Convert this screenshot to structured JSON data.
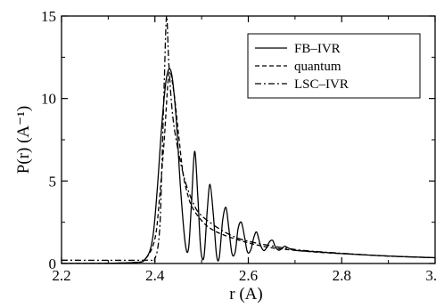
{
  "chart_data": {
    "type": "line",
    "xlabel": "r (A)",
    "ylabel": "P(r) (A⁻¹)",
    "xlim": [
      2.2,
      3.0
    ],
    "ylim": [
      0,
      15
    ],
    "xticks": [
      2.2,
      2.4,
      2.6,
      2.8,
      3.0
    ],
    "xtick_labels": [
      "2.2",
      "2.4",
      "2.6",
      "2.8",
      "3.0"
    ],
    "yticks": [
      0,
      5,
      10,
      15
    ],
    "ytick_labels": [
      "0",
      "5",
      "10",
      "15"
    ],
    "grid": false,
    "legend_position": "top-right",
    "series": [
      {
        "name": "FB–IVR",
        "style": "solid",
        "x": [
          2.2,
          2.35,
          2.38,
          2.395,
          2.405,
          2.415,
          2.425,
          2.435,
          2.445,
          2.455,
          2.465,
          2.472,
          2.478,
          2.485,
          2.492,
          2.498,
          2.505,
          2.512,
          2.518,
          2.525,
          2.532,
          2.538,
          2.545,
          2.552,
          2.558,
          2.565,
          2.572,
          2.578,
          2.585,
          2.592,
          2.598,
          2.605,
          2.612,
          2.618,
          2.625,
          2.632,
          2.638,
          2.645,
          2.652,
          2.658,
          2.665,
          2.672,
          2.678,
          2.685,
          2.7,
          2.75,
          2.8,
          2.9,
          3.0
        ],
        "y": [
          0.0,
          0.05,
          0.3,
          1.5,
          4.5,
          8.5,
          11.3,
          11.6,
          9.0,
          4.5,
          1.2,
          0.9,
          3.5,
          6.8,
          4.0,
          0.9,
          0.4,
          3.2,
          4.8,
          3.0,
          0.5,
          0.4,
          2.6,
          3.4,
          2.2,
          0.6,
          0.7,
          2.1,
          2.5,
          1.6,
          0.7,
          0.8,
          1.6,
          1.9,
          1.2,
          0.8,
          0.9,
          1.3,
          1.4,
          1.0,
          0.8,
          0.9,
          1.05,
          0.95,
          0.8,
          0.7,
          0.6,
          0.45,
          0.35
        ]
      },
      {
        "name": "quantum",
        "style": "dashed",
        "x": [
          2.2,
          2.35,
          2.38,
          2.4,
          2.41,
          2.42,
          2.43,
          2.44,
          2.45,
          2.46,
          2.47,
          2.48,
          2.5,
          2.52,
          2.55,
          2.6,
          2.65,
          2.7,
          2.75,
          2.8,
          2.9,
          3.0
        ],
        "y": [
          0.0,
          0.05,
          0.3,
          1.5,
          4.0,
          7.5,
          11.5,
          10.5,
          8.0,
          5.5,
          4.2,
          3.4,
          2.6,
          2.1,
          1.7,
          1.25,
          0.95,
          0.8,
          0.68,
          0.6,
          0.45,
          0.35
        ]
      },
      {
        "name": "LSC–IVR",
        "style": "dashdot",
        "x": [
          2.2,
          2.38,
          2.4,
          2.41,
          2.415,
          2.42,
          2.425,
          2.43,
          2.44,
          2.46,
          2.48,
          2.5,
          2.55,
          2.6,
          2.7,
          2.8,
          2.9,
          3.0
        ],
        "y": [
          0.2,
          0.2,
          0.3,
          2.0,
          6.0,
          11.0,
          15.0,
          12.0,
          8.5,
          5.5,
          3.8,
          2.9,
          1.9,
          1.35,
          0.85,
          0.62,
          0.45,
          0.35
        ]
      }
    ]
  }
}
